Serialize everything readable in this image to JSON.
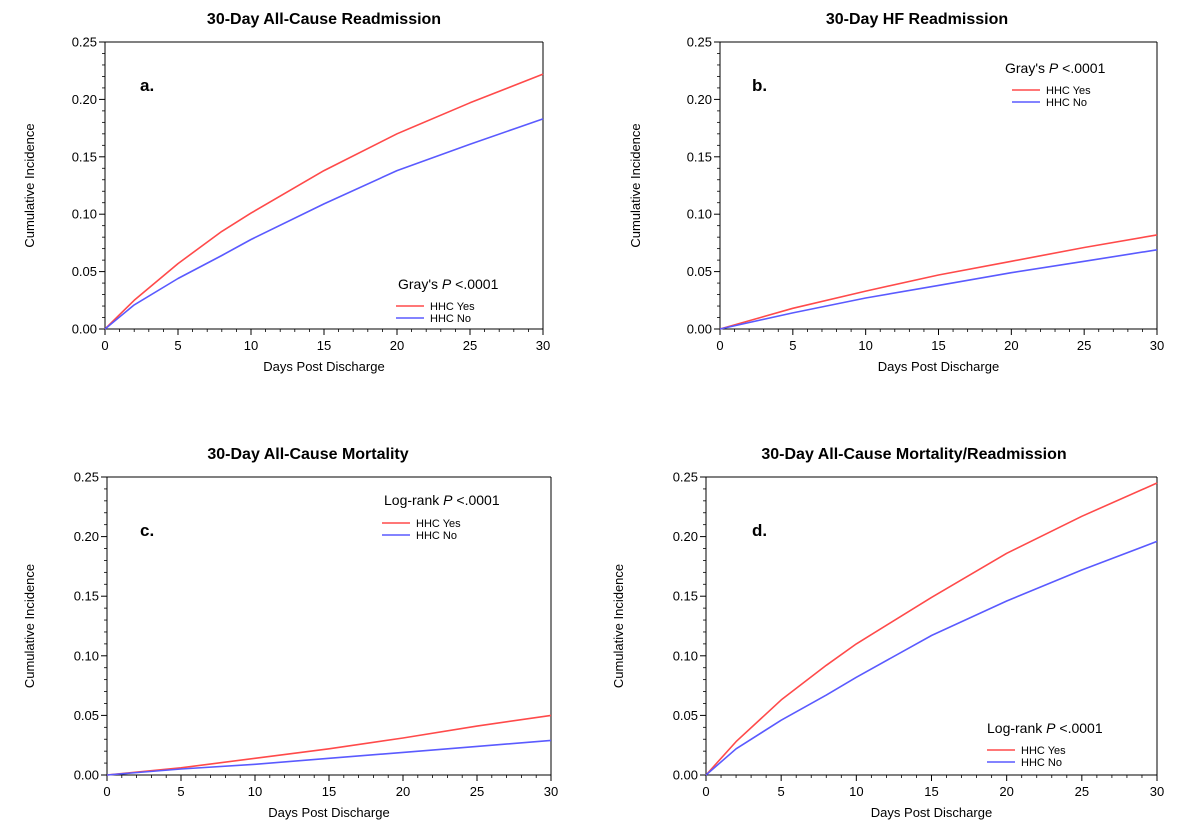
{
  "chart_data": [
    {
      "type": "line",
      "title": "30-Day All-Cause Readmission",
      "panel_letter": "a.",
      "xlabel": "Days Post Discharge",
      "ylabel": "Cumulative Incidence",
      "xlim": [
        0,
        30
      ],
      "ylim": [
        0,
        0.25
      ],
      "x_ticks": [
        "0",
        "5",
        "10",
        "15",
        "20",
        "25",
        "30"
      ],
      "y_ticks": [
        "0.00",
        "0.05",
        "0.10",
        "0.15",
        "0.20",
        "0.25"
      ],
      "stat_label": "Gray's",
      "stat_p": "P",
      "stat_value": "<.0001",
      "legend_position": "lower-right",
      "series": [
        {
          "name": "HHC Yes",
          "color": "#ff4a4a",
          "x": [
            0,
            2,
            5,
            8,
            10,
            15,
            20,
            25,
            30
          ],
          "y": [
            0,
            0.025,
            0.057,
            0.085,
            0.101,
            0.138,
            0.17,
            0.197,
            0.222
          ]
        },
        {
          "name": "HHC No",
          "color": "#5a5aff",
          "x": [
            0,
            2,
            5,
            8,
            10,
            15,
            20,
            25,
            30
          ],
          "y": [
            0,
            0.021,
            0.044,
            0.064,
            0.078,
            0.109,
            0.138,
            0.161,
            0.183
          ]
        }
      ],
      "grid": false
    },
    {
      "type": "line",
      "title": "30-Day HF Readmission",
      "panel_letter": "b.",
      "xlabel": "Days Post Discharge",
      "ylabel": "Cumulative Incidence",
      "xlim": [
        0,
        30
      ],
      "ylim": [
        0,
        0.25
      ],
      "x_ticks": [
        "0",
        "5",
        "10",
        "15",
        "20",
        "25",
        "30"
      ],
      "y_ticks": [
        "0.00",
        "0.05",
        "0.10",
        "0.15",
        "0.20",
        "0.25"
      ],
      "stat_label": "Gray's",
      "stat_p": "P",
      "stat_value": "<.0001",
      "legend_position": "top-right",
      "series": [
        {
          "name": "HHC Yes",
          "color": "#ff4a4a",
          "x": [
            0,
            5,
            10,
            15,
            20,
            25,
            30
          ],
          "y": [
            0,
            0.018,
            0.033,
            0.047,
            0.059,
            0.071,
            0.082
          ]
        },
        {
          "name": "HHC No",
          "color": "#5a5aff",
          "x": [
            0,
            5,
            10,
            15,
            20,
            25,
            30
          ],
          "y": [
            0,
            0.014,
            0.027,
            0.038,
            0.049,
            0.059,
            0.069
          ]
        }
      ],
      "grid": false
    },
    {
      "type": "line",
      "title": "30-Day All-Cause Mortality",
      "panel_letter": "c.",
      "xlabel": "Days Post Discharge",
      "ylabel": "Cumulative Incidence",
      "xlim": [
        0,
        30
      ],
      "ylim": [
        0,
        0.25
      ],
      "x_ticks": [
        "0",
        "5",
        "10",
        "15",
        "20",
        "25",
        "30"
      ],
      "y_ticks": [
        "0.00",
        "0.05",
        "0.10",
        "0.15",
        "0.20",
        "0.25"
      ],
      "stat_label": "Log-rank",
      "stat_p": "P",
      "stat_value": "<.0001",
      "legend_position": "top-right",
      "series": [
        {
          "name": "HHC Yes",
          "color": "#ff4a4a",
          "x": [
            0,
            5,
            10,
            15,
            20,
            25,
            30
          ],
          "y": [
            0,
            0.006,
            0.014,
            0.022,
            0.031,
            0.041,
            0.05
          ]
        },
        {
          "name": "HHC No",
          "color": "#5a5aff",
          "x": [
            0,
            5,
            10,
            15,
            20,
            25,
            30
          ],
          "y": [
            0,
            0.005,
            0.009,
            0.014,
            0.019,
            0.024,
            0.029
          ]
        }
      ],
      "grid": false
    },
    {
      "type": "line",
      "title": "30-Day All-Cause Mortality/Readmission",
      "panel_letter": "d.",
      "xlabel": "Days Post Discharge",
      "ylabel": "Cumulative Incidence",
      "xlim": [
        0,
        30
      ],
      "ylim": [
        0,
        0.25
      ],
      "x_ticks": [
        "0",
        "5",
        "10",
        "15",
        "20",
        "25",
        "30"
      ],
      "y_ticks": [
        "0.00",
        "0.05",
        "0.10",
        "0.15",
        "0.20",
        "0.25"
      ],
      "stat_label": "Log-rank",
      "stat_p": "P",
      "stat_value": "<.0001",
      "legend_position": "lower-right",
      "series": [
        {
          "name": "HHC Yes",
          "color": "#ff4a4a",
          "x": [
            0,
            2,
            5,
            8,
            10,
            15,
            20,
            25,
            30
          ],
          "y": [
            0,
            0.028,
            0.063,
            0.092,
            0.11,
            0.149,
            0.186,
            0.217,
            0.245
          ]
        },
        {
          "name": "HHC No",
          "color": "#5a5aff",
          "x": [
            0,
            2,
            5,
            8,
            10,
            15,
            20,
            25,
            30
          ],
          "y": [
            0,
            0.022,
            0.046,
            0.067,
            0.082,
            0.117,
            0.146,
            0.172,
            0.196
          ]
        }
      ],
      "grid": false
    }
  ]
}
